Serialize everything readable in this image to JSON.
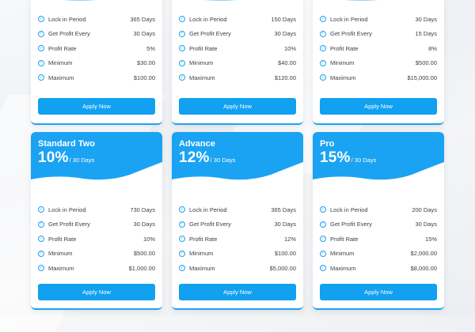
{
  "theme": {
    "accent": "#1aa3f2",
    "button": "#12a0f0",
    "background": "#f2f3f5"
  },
  "feature_labels": [
    "Lock in Period",
    "Get Profit Every",
    "Profit Rate",
    "Minimum",
    "Maximum"
  ],
  "apply_label": "Apply Now",
  "top_plans": [
    {
      "values": [
        "365 Days",
        "30 Days",
        "5%",
        "$30.00",
        "$100.00"
      ]
    },
    {
      "values": [
        "150 Days",
        "30 Days",
        "10%",
        "$40.00",
        "$120.00"
      ]
    },
    {
      "values": [
        "30 Days",
        "15 Days",
        "8%",
        "$500.00",
        "$15,000.00"
      ]
    }
  ],
  "bottom_plans": [
    {
      "name": "Standard Two",
      "rate": "10%",
      "period": "/ 30 Days",
      "values": [
        "730 Days",
        "30 Days",
        "10%",
        "$500.00",
        "$1,000.00"
      ]
    },
    {
      "name": "Advance",
      "rate": "12%",
      "period": "/ 30 Days",
      "values": [
        "365 Days",
        "30 Days",
        "12%",
        "$100.00",
        "$5,000.00"
      ]
    },
    {
      "name": "Pro",
      "rate": "15%",
      "period": "/ 30 Days",
      "values": [
        "200 Days",
        "30 Days",
        "15%",
        "$2,000.00",
        "$8,000.00"
      ]
    }
  ]
}
